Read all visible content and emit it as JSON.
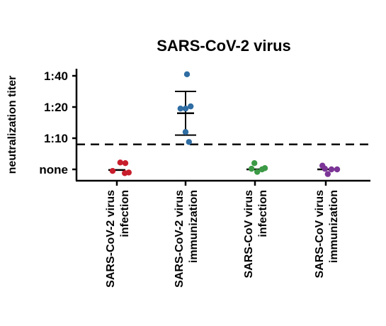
{
  "chart_data": {
    "type": "scatter",
    "title": "SARS-CoV-2 virus",
    "ylabel": "neutralization titer",
    "xlabel": "",
    "y_ticks": [
      "none",
      "1:10",
      "1:20",
      "1:40"
    ],
    "y_tick_values": [
      0,
      1,
      2,
      3
    ],
    "ylim": [
      -0.35,
      3.15
    ],
    "threshold": 0.8,
    "categories": [
      {
        "line1": "SARS-CoV-2 virus",
        "line2": "infection"
      },
      {
        "line1": "SARS-CoV-2 virus",
        "line2": "immunization"
      },
      {
        "line1": "SARS-CoV virus",
        "line2": "infection"
      },
      {
        "line1": "SARS-CoV virus",
        "line2": "immunization"
      }
    ],
    "series": [
      {
        "color": "#c81e2c",
        "points": [
          [
            -0.15,
            -0.05
          ],
          [
            0.12,
            0.22
          ],
          [
            0.3,
            0.2
          ],
          [
            0.28,
            -0.12
          ],
          [
            0.42,
            -0.1
          ]
        ],
        "center": -0.02,
        "error_low": null,
        "error_high": null
      },
      {
        "color": "#2f6da3",
        "points": [
          [
            -0.18,
            1.95
          ],
          [
            0.0,
            1.95
          ],
          [
            0.18,
            2.02
          ],
          [
            0.05,
            3.05
          ],
          [
            0.0,
            1.2
          ],
          [
            0.12,
            0.88
          ]
        ],
        "center": 1.8,
        "error_low": 1.1,
        "error_high": 2.5
      },
      {
        "color": "#3c9a46",
        "points": [
          [
            -0.12,
            0.02
          ],
          [
            -0.02,
            0.2
          ],
          [
            0.08,
            -0.08
          ],
          [
            0.25,
            0.0
          ],
          [
            0.35,
            0.04
          ]
        ],
        "center": 0.0,
        "error_low": null,
        "error_high": null
      },
      {
        "color": "#7b3596",
        "points": [
          [
            -0.12,
            0.12
          ],
          [
            -0.03,
            0.02
          ],
          [
            0.07,
            -0.15
          ],
          [
            0.2,
            0.0
          ],
          [
            0.4,
            0.0
          ]
        ],
        "center": 0.0,
        "error_low": null,
        "error_high": null
      }
    ]
  }
}
